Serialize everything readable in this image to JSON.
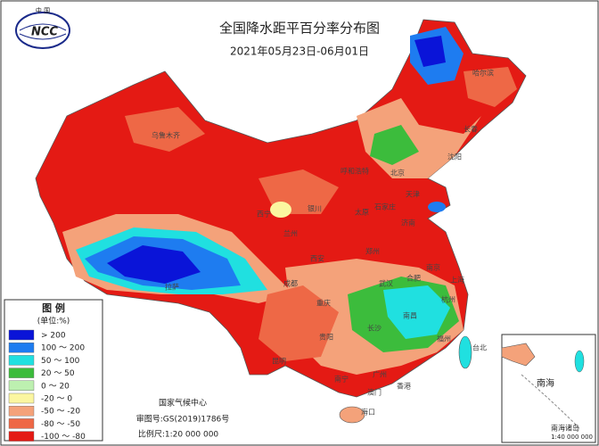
{
  "header": {
    "title": "全国降水距平百分率分布图",
    "subtitle": "2021年05月23日-06月01日",
    "logo": "NCC",
    "logo_top": "中 国"
  },
  "legend": {
    "title": "图 例",
    "unit": "(单位:%)",
    "items": [
      {
        "label": "> 200",
        "color": "#0a14d8"
      },
      {
        "label": "100 ～ 200",
        "color": "#1e7cf0"
      },
      {
        "label": "50 ～ 100",
        "color": "#20e0e0"
      },
      {
        "label": "20 ～ 50",
        "color": "#3cbc3c"
      },
      {
        "label": "0 ～ 20",
        "color": "#bdf0b0"
      },
      {
        "label": "-20 ～ 0",
        "color": "#fbf6a0"
      },
      {
        "label": "-50 ～ -20",
        "color": "#f4a27a"
      },
      {
        "label": "-80 ～ -50",
        "color": "#ee6846"
      },
      {
        "label": "-100 ～ -80",
        "color": "#e41a14"
      }
    ]
  },
  "footer": {
    "center": "国家气候中心",
    "approval": "审图号:GS(2019)1786号",
    "scale": "比例尺:1:20 000 000"
  },
  "inset": {
    "sea": "南海",
    "islands": "南海诸岛",
    "scale": "1:40 000 000"
  },
  "cities": [
    "乌鲁木齐",
    "哈尔滨",
    "长春",
    "沈阳",
    "北京",
    "天津",
    "石家庄",
    "太原",
    "呼和浩特",
    "银川",
    "兰州",
    "西宁",
    "西安",
    "郑州",
    "济南",
    "南京",
    "上海",
    "合肥",
    "武汉",
    "杭州",
    "成都",
    "重庆",
    "拉萨",
    "长沙",
    "南昌",
    "福州",
    "台北",
    "贵阳",
    "昆明",
    "南宁",
    "广州",
    "香港",
    "澳门",
    "海口"
  ]
}
